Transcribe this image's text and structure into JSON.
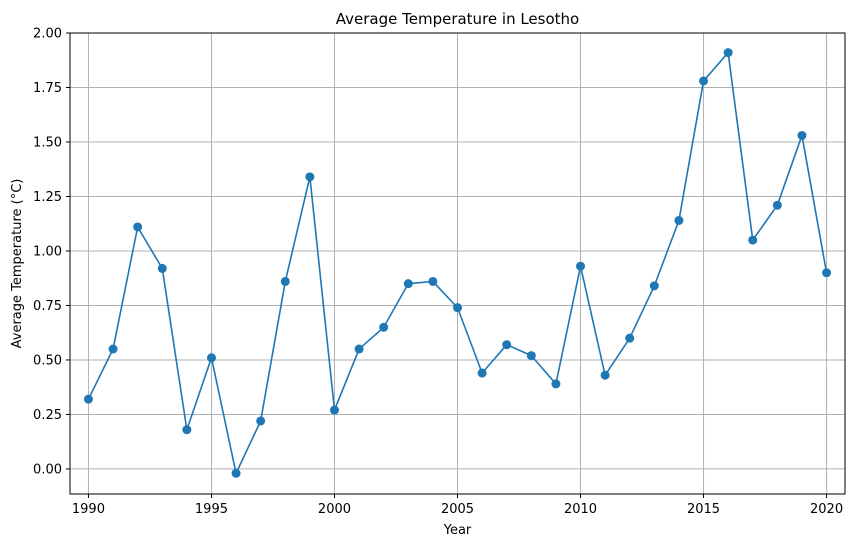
{
  "chart_data": {
    "type": "line",
    "title": "Average Temperature in Lesotho",
    "xlabel": "Year",
    "ylabel": "Average Temperature (°C)",
    "x": [
      1990,
      1991,
      1992,
      1993,
      1994,
      1995,
      1996,
      1997,
      1998,
      1999,
      2000,
      2001,
      2002,
      2003,
      2004,
      2005,
      2006,
      2007,
      2008,
      2009,
      2010,
      2011,
      2012,
      2013,
      2014,
      2015,
      2016,
      2017,
      2018,
      2019,
      2020
    ],
    "series": [
      {
        "values": [
          0.32,
          0.55,
          1.11,
          0.92,
          0.18,
          0.51,
          -0.02,
          0.22,
          0.86,
          1.34,
          0.27,
          0.55,
          0.65,
          0.85,
          0.86,
          0.74,
          0.44,
          0.57,
          0.52,
          0.39,
          0.93,
          0.43,
          0.6,
          0.84,
          1.14,
          1.78,
          1.91,
          1.05,
          1.21,
          1.53,
          0.9
        ],
        "color": "#1f77b4",
        "marker": "circle"
      }
    ],
    "xlim": [
      1989.25,
      2020.75
    ],
    "ylim": [
      -0.115,
      2.0
    ],
    "xticks": [
      {
        "value": 1990,
        "label": "1990"
      },
      {
        "value": 1995,
        "label": "1995"
      },
      {
        "value": 2000,
        "label": "2000"
      },
      {
        "value": 2005,
        "label": "2005"
      },
      {
        "value": 2010,
        "label": "2010"
      },
      {
        "value": 2015,
        "label": "2015"
      },
      {
        "value": 2020,
        "label": "2020"
      }
    ],
    "yticks": [
      {
        "value": 0.0,
        "label": "0.00"
      },
      {
        "value": 0.25,
        "label": "0.25"
      },
      {
        "value": 0.5,
        "label": "0.50"
      },
      {
        "value": 0.75,
        "label": "0.75"
      },
      {
        "value": 1.0,
        "label": "1.00"
      },
      {
        "value": 1.25,
        "label": "1.25"
      },
      {
        "value": 1.5,
        "label": "1.50"
      },
      {
        "value": 1.75,
        "label": "1.75"
      },
      {
        "value": 2.0,
        "label": "2.00"
      }
    ],
    "grid": true
  }
}
